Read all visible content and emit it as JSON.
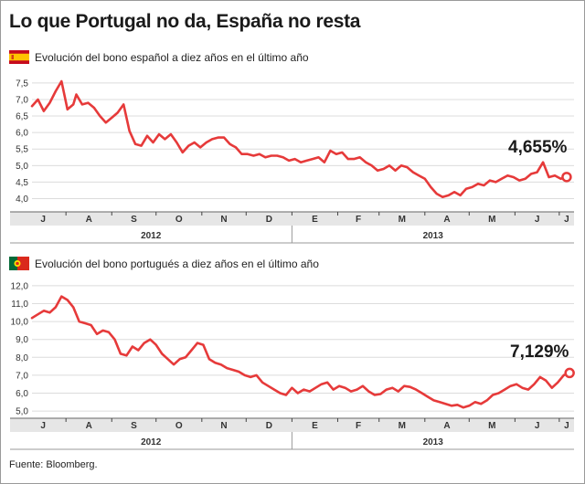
{
  "headline": "Lo que Portugal no da, España no resta",
  "source": "Fuente: Bloomberg.",
  "colors": {
    "line": "#e63a3a",
    "grid": "#dcdcdc",
    "axis_band": "#e6e6e6",
    "background": "#ffffff"
  },
  "chart_data": [
    {
      "type": "line",
      "flag_icon": "spain-flag-icon",
      "title": "Evolución del bono español a diez años en el último año",
      "callout": "4,655%",
      "ylim": [
        3.6,
        7.8
      ],
      "yticks": [
        "4,0",
        "4,5",
        "5,0",
        "5,5",
        "6,0",
        "6,5",
        "7,0",
        "7,5"
      ],
      "ytick_values": [
        4.0,
        4.5,
        5.0,
        5.5,
        6.0,
        6.5,
        7.0,
        7.5
      ],
      "xlim": [
        0,
        367
      ],
      "months": [
        "J",
        "A",
        "S",
        "O",
        "N",
        "D",
        "E",
        "F",
        "M",
        "A",
        "M",
        "J",
        "J"
      ],
      "month_starts": [
        -8,
        23,
        54,
        84,
        115,
        145,
        176,
        207,
        235,
        266,
        296,
        327,
        357
      ],
      "years": [
        {
          "label": "2012",
          "from": 0,
          "to": 176
        },
        {
          "label": "2013",
          "from": 176,
          "to": 367
        }
      ],
      "series": [
        {
          "x": [
            0,
            4,
            8,
            12,
            16,
            20,
            24,
            28,
            30,
            34,
            38,
            42,
            46,
            50,
            54,
            58,
            62,
            66,
            70,
            74,
            78,
            82,
            86,
            90,
            94,
            98,
            102,
            106,
            110,
            114,
            118,
            122,
            126,
            130,
            134,
            138,
            142,
            146,
            150,
            154,
            158,
            162,
            166,
            170,
            174,
            178,
            182,
            186,
            190,
            194,
            198,
            202,
            206,
            210,
            214,
            218,
            222,
            226,
            230,
            234,
            238,
            242,
            246,
            250,
            254,
            258,
            262,
            266,
            270,
            274,
            278,
            282,
            286,
            290,
            294,
            298,
            302,
            306,
            310,
            314,
            318,
            322,
            326,
            330,
            334,
            338,
            342,
            346,
            350,
            354,
            358,
            362
          ],
          "y": [
            6.8,
            7.0,
            6.65,
            6.9,
            7.25,
            7.55,
            6.7,
            6.85,
            7.15,
            6.85,
            6.9,
            6.75,
            6.5,
            6.3,
            6.45,
            6.6,
            6.85,
            6.05,
            5.65,
            5.6,
            5.9,
            5.7,
            5.95,
            5.8,
            5.95,
            5.7,
            5.4,
            5.6,
            5.7,
            5.55,
            5.7,
            5.8,
            5.85,
            5.85,
            5.65,
            5.55,
            5.35,
            5.35,
            5.3,
            5.35,
            5.25,
            5.3,
            5.3,
            5.25,
            5.15,
            5.2,
            5.1,
            5.15,
            5.2,
            5.25,
            5.1,
            5.45,
            5.35,
            5.4,
            5.2,
            5.2,
            5.25,
            5.1,
            5.0,
            4.85,
            4.9,
            5.0,
            4.85,
            5.0,
            4.95,
            4.8,
            4.7,
            4.6,
            4.35,
            4.15,
            4.05,
            4.1,
            4.2,
            4.1,
            4.3,
            4.35,
            4.45,
            4.4,
            4.55,
            4.5,
            4.6,
            4.7,
            4.65,
            4.55,
            4.6,
            4.75,
            4.8,
            5.1,
            4.65,
            4.7,
            4.6,
            4.655
          ]
        }
      ]
    },
    {
      "type": "line",
      "flag_icon": "portugal-flag-icon",
      "title": "Evolución del bono portugués a diez años en el último año",
      "callout": "7,129%",
      "ylim": [
        4.6,
        12.4
      ],
      "yticks": [
        "5,0",
        "6,0",
        "7,0",
        "8,0",
        "9,0",
        "10,0",
        "11,0",
        "12,0"
      ],
      "ytick_values": [
        5.0,
        6.0,
        7.0,
        8.0,
        9.0,
        10.0,
        11.0,
        12.0
      ],
      "xlim": [
        0,
        367
      ],
      "months": [
        "J",
        "A",
        "S",
        "O",
        "N",
        "D",
        "E",
        "F",
        "M",
        "A",
        "M",
        "J",
        "J"
      ],
      "month_starts": [
        -8,
        23,
        54,
        84,
        115,
        145,
        176,
        207,
        235,
        266,
        296,
        327,
        357
      ],
      "years": [
        {
          "label": "2012",
          "from": 0,
          "to": 176
        },
        {
          "label": "2013",
          "from": 176,
          "to": 367
        }
      ],
      "series": [
        {
          "x": [
            0,
            4,
            8,
            12,
            16,
            20,
            24,
            28,
            32,
            36,
            40,
            44,
            48,
            52,
            56,
            60,
            64,
            68,
            72,
            76,
            80,
            84,
            88,
            92,
            96,
            100,
            104,
            108,
            112,
            116,
            120,
            124,
            128,
            132,
            136,
            140,
            144,
            148,
            152,
            156,
            160,
            164,
            168,
            172,
            176,
            180,
            184,
            188,
            192,
            196,
            200,
            204,
            208,
            212,
            216,
            220,
            224,
            228,
            232,
            236,
            240,
            244,
            248,
            252,
            256,
            260,
            264,
            268,
            272,
            276,
            280,
            284,
            288,
            292,
            296,
            300,
            304,
            308,
            312,
            316,
            320,
            324,
            328,
            332,
            336,
            340,
            344,
            348,
            352,
            356,
            360,
            364
          ],
          "y": [
            10.2,
            10.4,
            10.6,
            10.5,
            10.8,
            11.4,
            11.2,
            10.8,
            10.0,
            9.9,
            9.8,
            9.3,
            9.5,
            9.4,
            9.0,
            8.2,
            8.1,
            8.6,
            8.4,
            8.8,
            9.0,
            8.7,
            8.2,
            7.9,
            7.6,
            7.9,
            8.0,
            8.4,
            8.8,
            8.7,
            7.9,
            7.7,
            7.6,
            7.4,
            7.3,
            7.2,
            7.0,
            6.9,
            7.0,
            6.6,
            6.4,
            6.2,
            6.0,
            5.9,
            6.3,
            6.0,
            6.2,
            6.1,
            6.3,
            6.5,
            6.6,
            6.2,
            6.4,
            6.3,
            6.1,
            6.2,
            6.4,
            6.1,
            5.9,
            5.95,
            6.2,
            6.3,
            6.1,
            6.4,
            6.35,
            6.2,
            6.0,
            5.8,
            5.6,
            5.5,
            5.4,
            5.3,
            5.35,
            5.2,
            5.3,
            5.5,
            5.4,
            5.6,
            5.9,
            6.0,
            6.2,
            6.4,
            6.5,
            6.3,
            6.2,
            6.5,
            6.9,
            6.7,
            6.3,
            6.6,
            7.0,
            7.129
          ]
        }
      ]
    }
  ]
}
